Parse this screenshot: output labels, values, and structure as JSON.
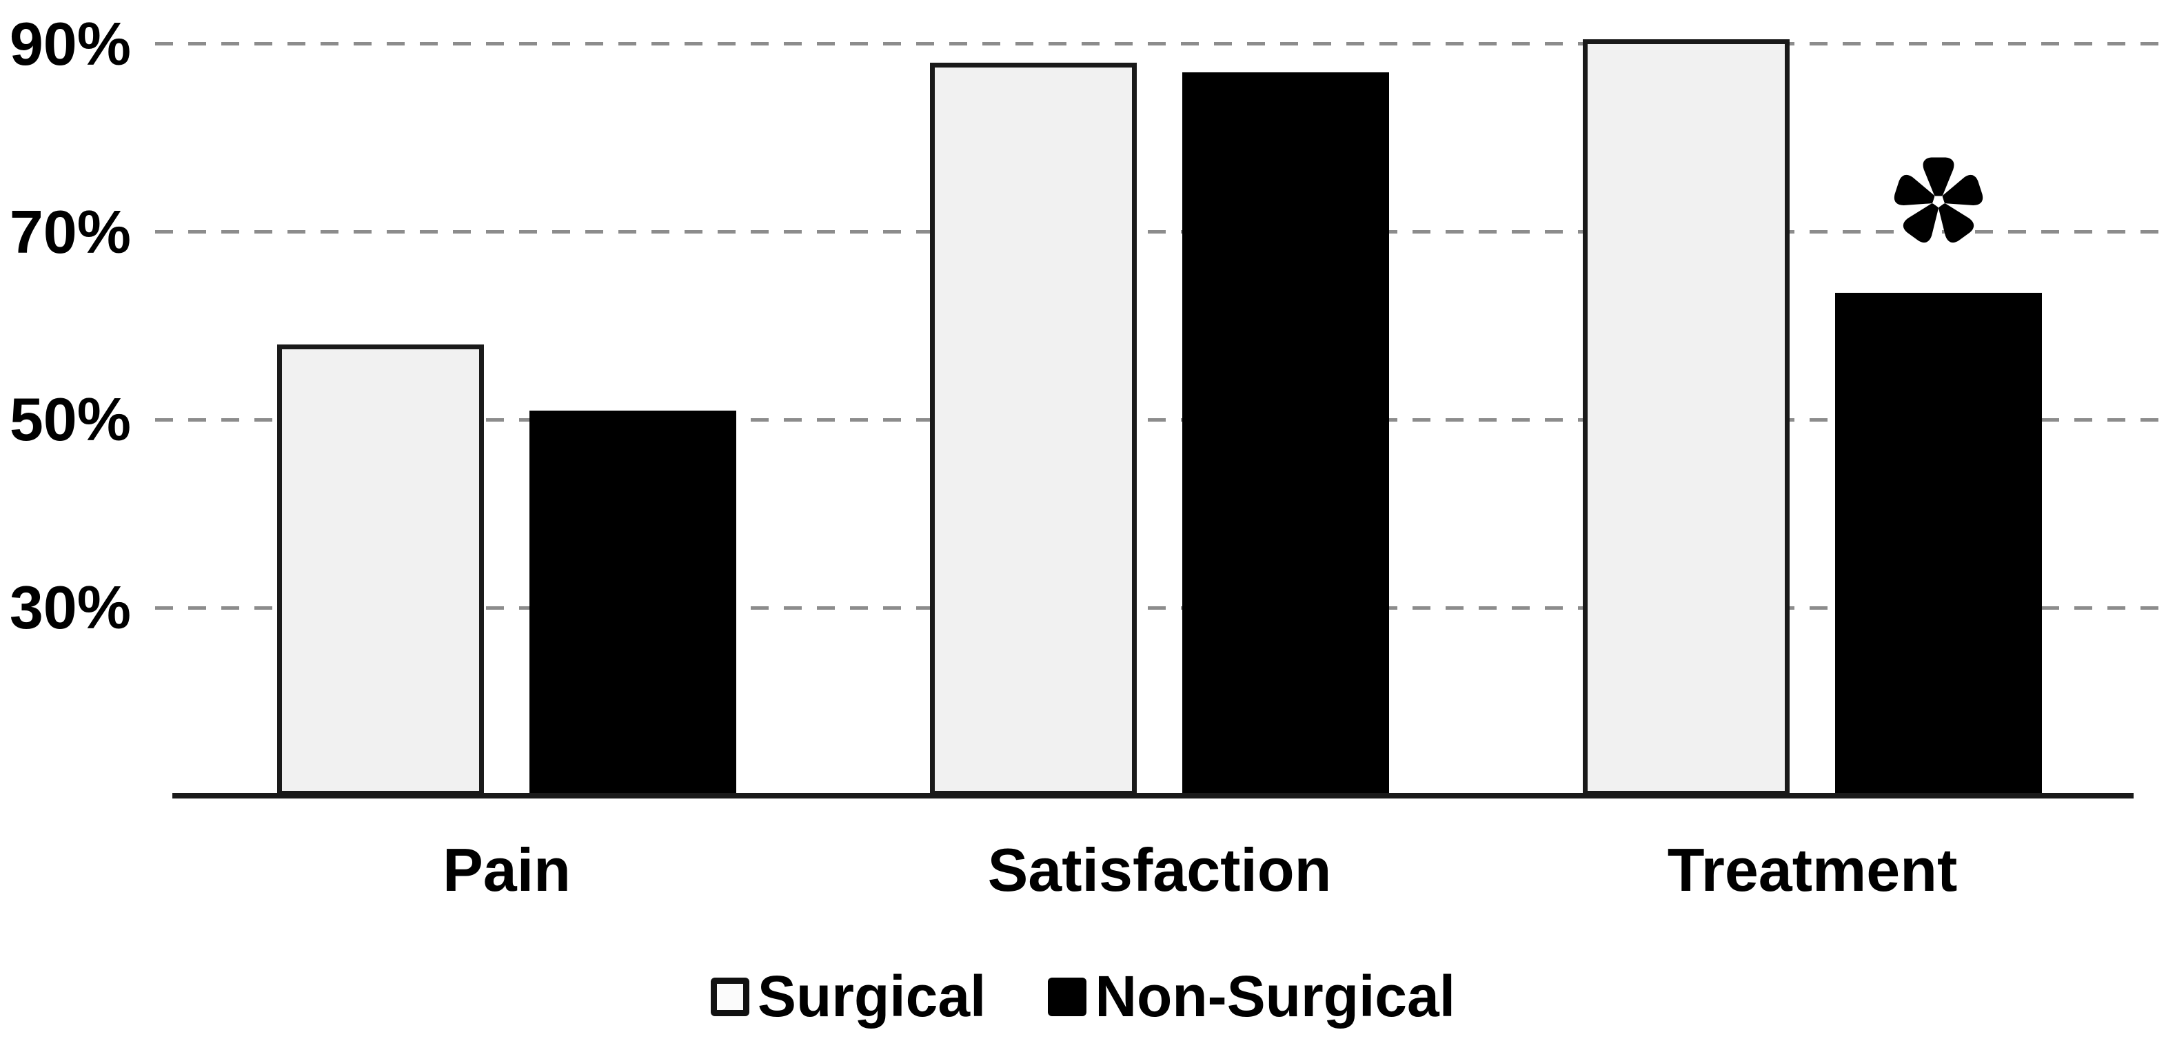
{
  "chart_data": {
    "type": "bar",
    "title": "",
    "categories": [
      "Pain",
      "Satisfaction",
      "Treatment"
    ],
    "series": [
      {
        "name": "Surgical",
        "values": [
          58,
          88,
          90.5
        ],
        "style": "light"
      },
      {
        "name": "Non-Surgical",
        "values": [
          51,
          87,
          63.5
        ],
        "style": "dark"
      }
    ],
    "y_tick_labels": [
      "90%",
      "70%",
      "50%",
      "30%"
    ],
    "y_tick_values": [
      90,
      70,
      50,
      30
    ],
    "ylim": [
      10,
      92
    ],
    "unit": "%",
    "grid": "horizontal-dashed",
    "legend": {
      "position": "bottom-center"
    },
    "annotations": [
      {
        "symbol": "*",
        "category": "Treatment",
        "series": "Non-Surgical"
      }
    ],
    "colors": {
      "surgical_fill": "#f1f1f1",
      "surgical_border": "#1a1a1a",
      "non_surgical_fill": "#000000",
      "gridline": "#8c8c8c",
      "axis": "#1a1a1a",
      "text": "#000000",
      "background": "#ffffff"
    }
  }
}
